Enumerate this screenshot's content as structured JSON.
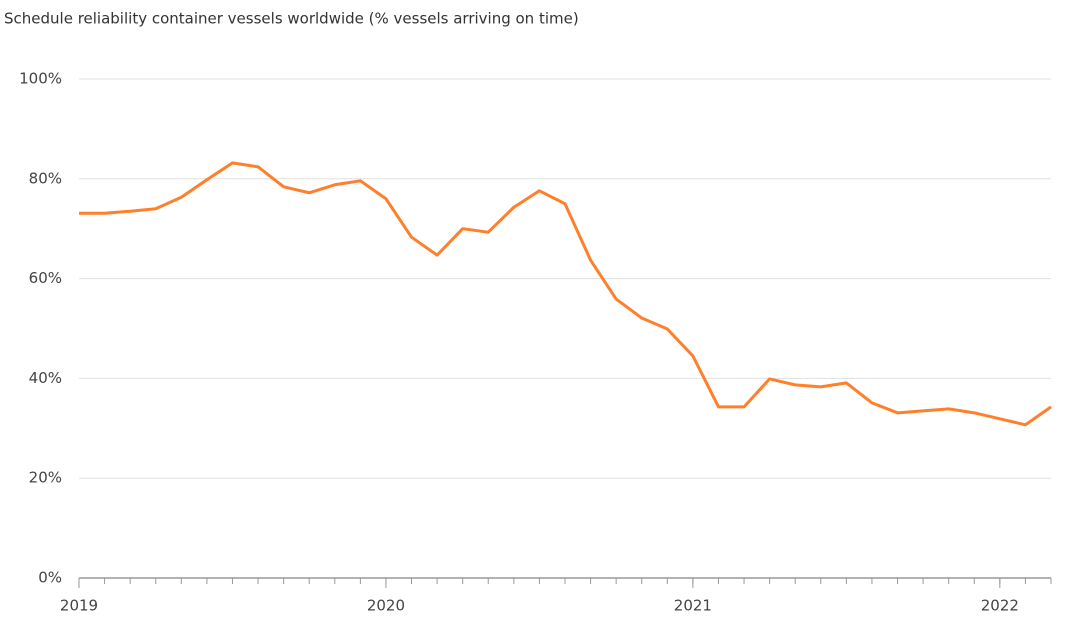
{
  "chart_data": {
    "type": "line",
    "title": "Schedule reliability container vessels worldwide (% vessels arriving on time)",
    "x": [
      2019,
      2019.0833,
      2019.1667,
      2019.25,
      2019.3333,
      2019.4167,
      2019.5,
      2019.5833,
      2019.6667,
      2019.75,
      2019.8333,
      2019.9167,
      2020,
      2020.0833,
      2020.1667,
      2020.25,
      2020.3333,
      2020.4167,
      2020.5,
      2020.5833,
      2020.6667,
      2020.75,
      2020.8333,
      2020.9167,
      2021,
      2021.0833,
      2021.1667,
      2021.25,
      2021.3333,
      2021.4167,
      2021.5,
      2021.5833,
      2021.6667,
      2021.75,
      2021.8333,
      2021.9167,
      2022,
      2022.0833,
      2022.1667
    ],
    "series": [
      {
        "name": "Schedule reliability",
        "color": "#ff7f2a",
        "values": [
          73.1,
          73.1,
          73.5,
          74,
          76.3,
          79.8,
          83.2,
          82.4,
          78.4,
          77.2,
          78.8,
          79.6,
          76,
          68.3,
          64.7,
          70,
          69.3,
          74.3,
          77.6,
          75,
          63.7,
          55.9,
          52.1,
          49.9,
          44.5,
          34.3,
          34.3,
          39.9,
          38.7,
          38.3,
          39.1,
          35.1,
          33.1,
          33.5,
          33.9,
          33.1,
          31.9,
          30.7,
          34.3
        ]
      }
    ],
    "xlim": [
      2019,
      2022.1667
    ],
    "xticks": [
      2019,
      2020,
      2021,
      2022
    ],
    "ylim": [
      0,
      100
    ],
    "yticks": [
      {
        "value": 0,
        "label": "0%"
      },
      {
        "value": 20,
        "label": "20%"
      },
      {
        "value": 40,
        "label": "40%"
      },
      {
        "value": 60,
        "label": "60%"
      },
      {
        "value": 80,
        "label": "80%"
      },
      {
        "value": 100,
        "label": "100%"
      }
    ],
    "grid": true
  }
}
